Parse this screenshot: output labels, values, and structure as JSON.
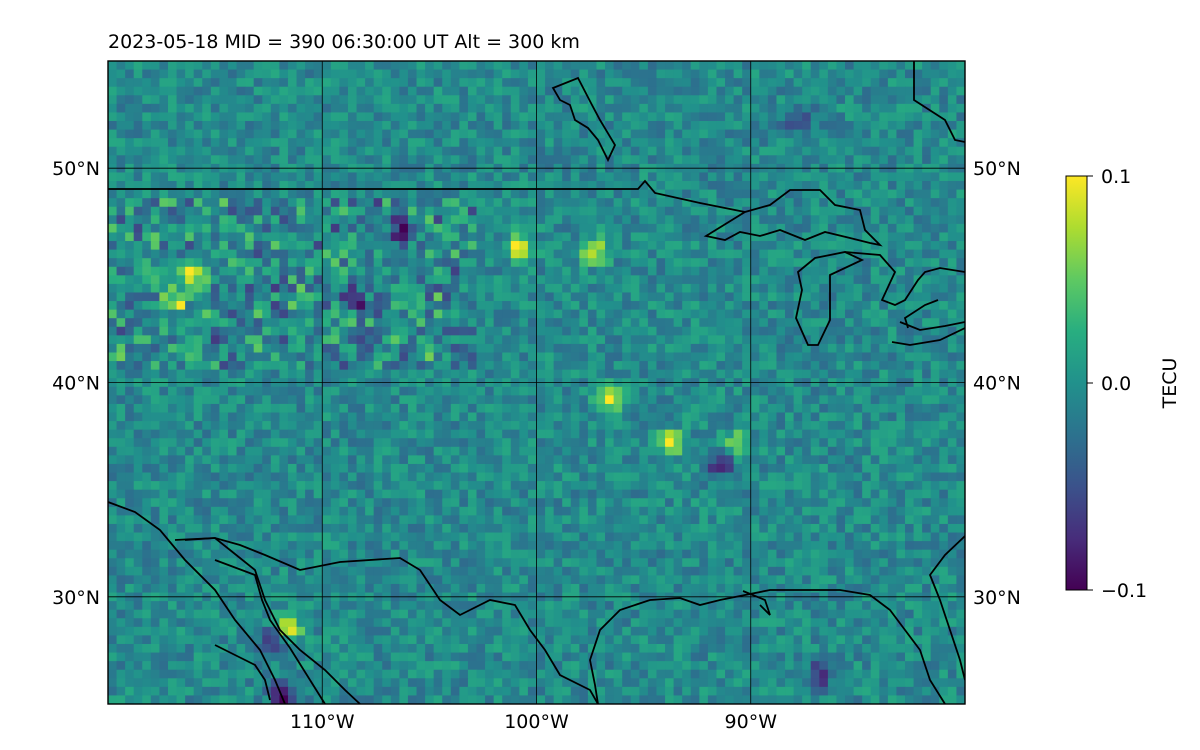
{
  "title": "2023-05-18  MID = 390    06:30:00  UT  Alt = 300 km",
  "chart_data": {
    "type": "heatmap",
    "title": "2023-05-18  MID = 390    06:30:00  UT  Alt = 300 km",
    "projection": "lat/lon map",
    "lon_range": [
      -120,
      -80
    ],
    "lat_range": [
      25,
      55
    ],
    "x_ticks": [
      {
        "value": -110,
        "label": "110°W"
      },
      {
        "value": -100,
        "label": "100°W"
      },
      {
        "value": -90,
        "label": "90°W"
      }
    ],
    "y_ticks": [
      {
        "value": 50,
        "label": "50°N"
      },
      {
        "value": 40,
        "label": "40°N"
      },
      {
        "value": 30,
        "label": "30°N"
      }
    ],
    "grid": true,
    "colormap": "viridis",
    "colorbar": {
      "label": "TECU",
      "vmin": -0.1,
      "vmax": 0.1,
      "ticks": [
        {
          "value": 0.1,
          "label": "0.1"
        },
        {
          "value": 0.0,
          "label": "0.0"
        },
        {
          "value": -0.1,
          "label": "−0.1"
        }
      ]
    },
    "features": [
      {
        "lon": -96.7,
        "lat": 39.5,
        "value": 0.1
      },
      {
        "lon": -94.0,
        "lat": 37.4,
        "value": 0.09
      },
      {
        "lon": -90.8,
        "lat": 37.3,
        "value": 0.07
      },
      {
        "lon": -91.5,
        "lat": 36.4,
        "value": -0.1
      },
      {
        "lon": -111.8,
        "lat": 28.8,
        "value": 0.1
      },
      {
        "lon": -112.0,
        "lat": 25.6,
        "value": -0.1
      },
      {
        "lon": -112.5,
        "lat": 28.2,
        "value": -0.08
      },
      {
        "lon": -117.0,
        "lat": 44.2,
        "value": 0.09
      },
      {
        "lon": -116.2,
        "lat": 45.2,
        "value": 0.09
      },
      {
        "lon": -101.0,
        "lat": 46.5,
        "value": 0.1
      },
      {
        "lon": -97.5,
        "lat": 46.3,
        "value": 0.08
      },
      {
        "lon": -106.5,
        "lat": 47.5,
        "value": -0.09
      },
      {
        "lon": -108.5,
        "lat": 44.0,
        "value": -0.08
      },
      {
        "lon": -88.0,
        "lat": 52.5,
        "value": -0.06
      },
      {
        "lon": -87.0,
        "lat": 26.5,
        "value": -0.08
      }
    ],
    "background_value": -0.005
  },
  "colors": {
    "axis": "#000000",
    "grid": "#000000",
    "coast": "#000000"
  }
}
